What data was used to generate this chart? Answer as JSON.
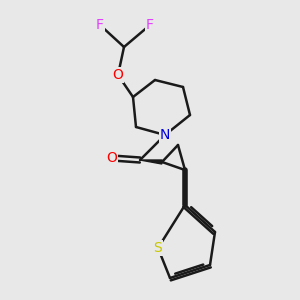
{
  "background_color": "#e8e8e8",
  "bond_color": "#1a1a1a",
  "atom_colors": {
    "F": "#e040fb",
    "O": "#ff0000",
    "N": "#0000dd",
    "S": "#c8c800",
    "C": "#1a1a1a"
  },
  "font_size_atom": 10,
  "fig_size": [
    3.0,
    3.0
  ],
  "dpi": 100
}
